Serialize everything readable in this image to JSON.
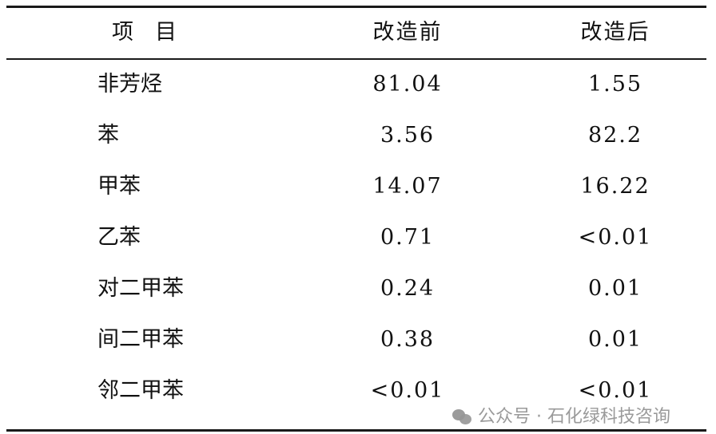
{
  "table": {
    "headers": [
      "项　目",
      "改造前",
      "改造后"
    ],
    "rows": [
      [
        "非芳烃",
        "81.04",
        "1.55"
      ],
      [
        "苯",
        "3.56",
        "82.2"
      ],
      [
        "甲苯",
        "14.07",
        "16.22"
      ],
      [
        "乙苯",
        "0.71",
        "<0.01"
      ],
      [
        "对二甲苯",
        "0.24",
        "0.01"
      ],
      [
        "间二甲苯",
        "0.38",
        "0.01"
      ],
      [
        "邻二甲苯",
        "<0.01",
        "<0.01"
      ]
    ]
  },
  "watermark": {
    "text": "公众号 · 石化绿科技咨询",
    "icon": "wechat-icon"
  }
}
